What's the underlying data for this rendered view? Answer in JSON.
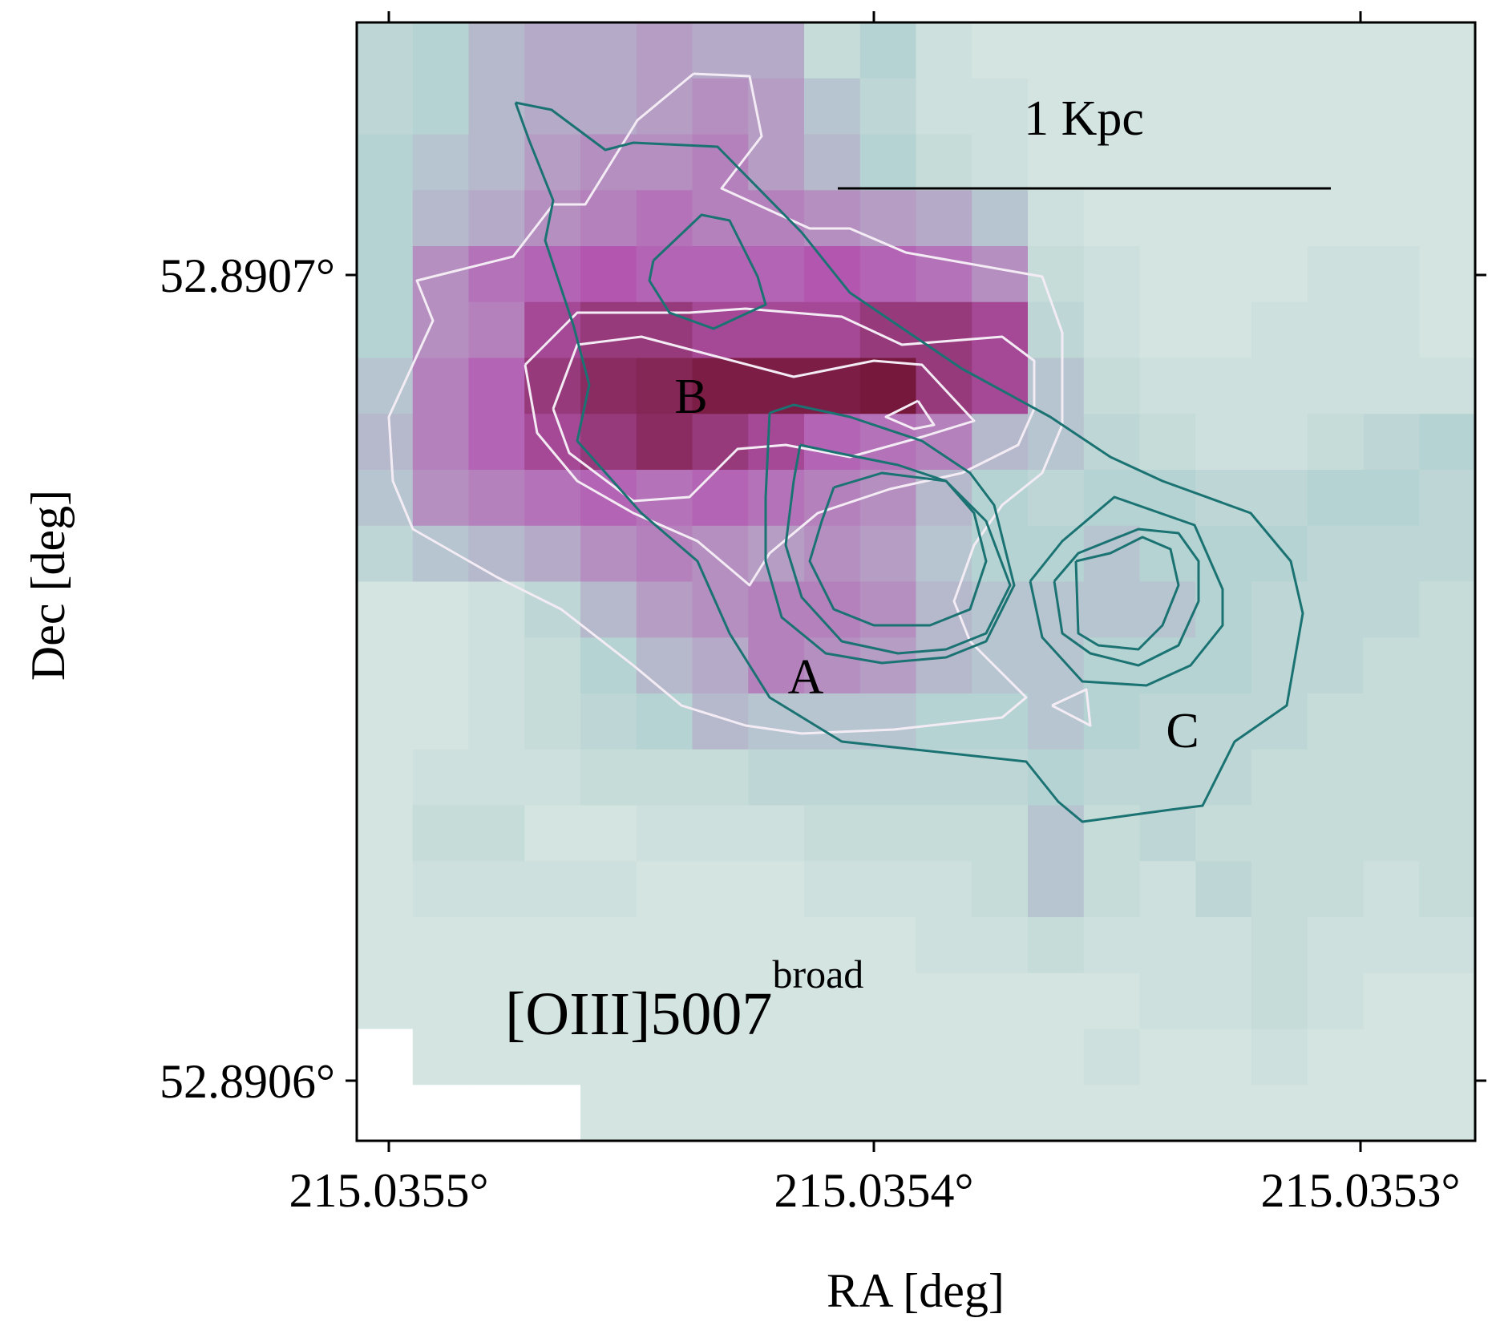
{
  "chart_data": {
    "type": "heatmap",
    "title": "",
    "panel_label": "[OIII]5007",
    "panel_label_superscript": "broad",
    "xlabel": "RA [deg]",
    "ylabel": "Dec [deg]",
    "x_axis": {
      "direction": "decreasing-to-right",
      "ticks": [
        215.0355,
        215.0354,
        215.0353
      ]
    },
    "y_axis": {
      "ticks": [
        52.8906,
        52.8907
      ]
    },
    "x_tick_labels": [
      "215.0355°",
      "215.0354°",
      "215.0353°"
    ],
    "y_tick_labels": [
      "52.8907°",
      "52.8906°"
    ],
    "scalebar_label": "1 Kpc",
    "region_labels": [
      "A",
      "B",
      "C"
    ],
    "colormap": {
      "low": "#e3ede6",
      "mid_low": "#b6d3d3",
      "mid": "#b58fc0",
      "mid_high": "#b356b0",
      "high": "#6e0f2c"
    },
    "grid_size": [
      20,
      20
    ],
    "intensity_grid": [
      [
        0.25,
        0.3,
        0.4,
        0.45,
        0.45,
        0.5,
        0.45,
        0.45,
        0.2,
        0.3,
        0.15,
        0.1,
        0.1,
        0.1,
        0.1,
        0.1,
        0.1,
        0.1,
        0.1,
        0.1
      ],
      [
        0.25,
        0.3,
        0.4,
        0.45,
        0.45,
        0.5,
        0.55,
        0.5,
        0.35,
        0.25,
        0.15,
        0.15,
        0.1,
        0.1,
        0.1,
        0.1,
        0.1,
        0.1,
        0.1,
        0.1
      ],
      [
        0.3,
        0.35,
        0.4,
        0.5,
        0.55,
        0.55,
        0.6,
        0.5,
        0.4,
        0.3,
        0.2,
        0.15,
        0.1,
        0.1,
        0.1,
        0.1,
        0.1,
        0.1,
        0.1,
        0.1
      ],
      [
        0.3,
        0.4,
        0.45,
        0.55,
        0.6,
        0.65,
        0.6,
        0.6,
        0.55,
        0.5,
        0.45,
        0.35,
        0.15,
        0.1,
        0.1,
        0.1,
        0.1,
        0.1,
        0.1,
        0.1
      ],
      [
        0.3,
        0.55,
        0.65,
        0.7,
        0.75,
        0.7,
        0.7,
        0.7,
        0.75,
        0.7,
        0.65,
        0.55,
        0.2,
        0.15,
        0.1,
        0.1,
        0.1,
        0.15,
        0.15,
        0.1
      ],
      [
        0.3,
        0.55,
        0.6,
        0.8,
        0.85,
        0.85,
        0.8,
        0.8,
        0.8,
        0.85,
        0.85,
        0.8,
        0.25,
        0.15,
        0.1,
        0.1,
        0.15,
        0.15,
        0.15,
        0.1
      ],
      [
        0.35,
        0.6,
        0.7,
        0.85,
        0.9,
        0.92,
        0.95,
        0.95,
        0.95,
        0.97,
        0.85,
        0.8,
        0.35,
        0.2,
        0.15,
        0.15,
        0.15,
        0.15,
        0.15,
        0.15
      ],
      [
        0.4,
        0.6,
        0.7,
        0.8,
        0.85,
        0.9,
        0.85,
        0.8,
        0.7,
        0.65,
        0.6,
        0.4,
        0.35,
        0.25,
        0.2,
        0.15,
        0.15,
        0.2,
        0.25,
        0.3
      ],
      [
        0.35,
        0.55,
        0.6,
        0.65,
        0.7,
        0.65,
        0.7,
        0.65,
        0.6,
        0.55,
        0.4,
        0.3,
        0.25,
        0.3,
        0.3,
        0.25,
        0.25,
        0.3,
        0.3,
        0.25
      ],
      [
        0.25,
        0.35,
        0.4,
        0.45,
        0.55,
        0.6,
        0.55,
        0.5,
        0.55,
        0.5,
        0.35,
        0.3,
        0.3,
        0.35,
        0.3,
        0.3,
        0.3,
        0.25,
        0.25,
        0.25
      ],
      [
        0.1,
        0.1,
        0.15,
        0.25,
        0.4,
        0.5,
        0.55,
        0.6,
        0.6,
        0.55,
        0.4,
        0.35,
        0.35,
        0.35,
        0.35,
        0.3,
        0.25,
        0.25,
        0.25,
        0.2
      ],
      [
        0.1,
        0.1,
        0.15,
        0.2,
        0.3,
        0.4,
        0.45,
        0.6,
        0.55,
        0.5,
        0.4,
        0.35,
        0.35,
        0.3,
        0.3,
        0.3,
        0.25,
        0.25,
        0.2,
        0.2
      ],
      [
        0.1,
        0.1,
        0.15,
        0.2,
        0.25,
        0.3,
        0.4,
        0.35,
        0.35,
        0.35,
        0.3,
        0.3,
        0.35,
        0.3,
        0.25,
        0.25,
        0.25,
        0.2,
        0.2,
        0.2
      ],
      [
        0.1,
        0.15,
        0.15,
        0.15,
        0.2,
        0.2,
        0.2,
        0.25,
        0.25,
        0.25,
        0.25,
        0.25,
        0.3,
        0.25,
        0.25,
        0.25,
        0.2,
        0.2,
        0.2,
        0.2
      ],
      [
        0.1,
        0.2,
        0.2,
        0.1,
        0.1,
        0.15,
        0.15,
        0.15,
        0.2,
        0.2,
        0.2,
        0.2,
        0.35,
        0.2,
        0.25,
        0.2,
        0.2,
        0.2,
        0.2,
        0.2
      ],
      [
        0.1,
        0.15,
        0.15,
        0.15,
        0.15,
        0.1,
        0.1,
        0.1,
        0.15,
        0.15,
        0.15,
        0.2,
        0.35,
        0.2,
        0.15,
        0.25,
        0.2,
        0.2,
        0.15,
        0.2
      ],
      [
        0.1,
        0.1,
        0.1,
        0.1,
        0.1,
        0.1,
        0.1,
        0.1,
        0.1,
        0.1,
        0.15,
        0.15,
        0.2,
        0.15,
        0.15,
        0.15,
        0.2,
        0.15,
        0.15,
        0.15
      ],
      [
        0.1,
        0.1,
        0.1,
        0.1,
        0.1,
        0.1,
        0.1,
        0.1,
        0.1,
        0.1,
        0.1,
        0.1,
        0.1,
        0.1,
        0.15,
        0.15,
        0.2,
        0.15,
        0.1,
        0.1
      ],
      [
        -1,
        0.1,
        0.1,
        0.1,
        0.1,
        0.1,
        0.1,
        0.1,
        0.1,
        0.1,
        0.1,
        0.1,
        0.1,
        0.15,
        0.1,
        0.1,
        0.15,
        0.1,
        0.1,
        0.1
      ],
      [
        -1,
        -1,
        -1,
        -1,
        0.1,
        0.1,
        0.1,
        0.1,
        0.1,
        0.1,
        0.1,
        0.1,
        0.1,
        0.1,
        0.1,
        0.1,
        0.1,
        0.1,
        0.1,
        0.1
      ]
    ]
  }
}
